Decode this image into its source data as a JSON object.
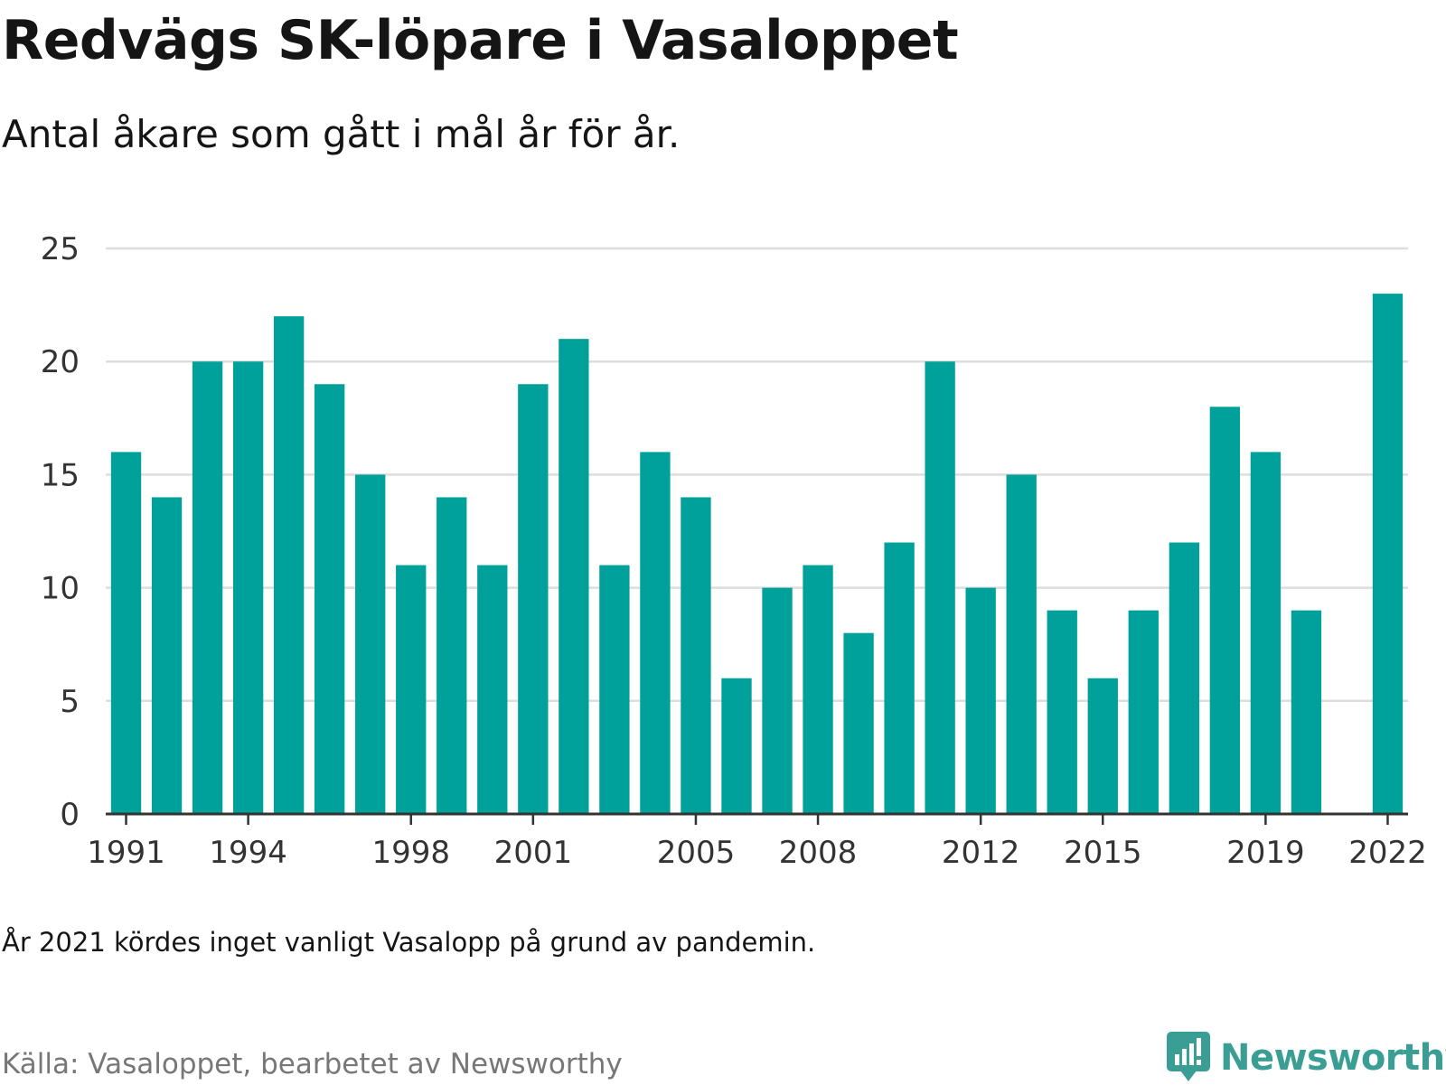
{
  "title": "Redvägs SK-löpare i Vasaloppet",
  "subtitle": "Antal åkare som gått i mål år för år.",
  "note": "År 2021 kördes inget vanligt Vasalopp på grund av pandemin.",
  "source": "Källa: Vasaloppet, bearbetet av Newsworthy",
  "brand": "Newsworthy",
  "colors": {
    "bar": "#00a19a",
    "grid": "#dddddd",
    "axis": "#333333",
    "brand": "#3a9e95"
  },
  "chart_data": {
    "type": "bar",
    "categories": [
      "1991",
      "1992",
      "1993",
      "1994",
      "1995",
      "1996",
      "1997",
      "1998",
      "1999",
      "2000",
      "2001",
      "2002",
      "2003",
      "2004",
      "2005",
      "2006",
      "2007",
      "2008",
      "2009",
      "2010",
      "2011",
      "2012",
      "2013",
      "2014",
      "2015",
      "2016",
      "2017",
      "2018",
      "2019",
      "2020",
      "2021",
      "2022"
    ],
    "values": [
      16,
      14,
      20,
      20,
      22,
      19,
      15,
      11,
      14,
      11,
      19,
      21,
      11,
      16,
      14,
      6,
      10,
      11,
      8,
      12,
      20,
      10,
      15,
      9,
      6,
      9,
      12,
      18,
      16,
      9,
      null,
      23
    ],
    "xticks": [
      "1991",
      "1994",
      "1998",
      "2001",
      "2005",
      "2008",
      "2012",
      "2015",
      "2019",
      "2022"
    ],
    "yticks": [
      0,
      5,
      10,
      15,
      20,
      25
    ],
    "ylim": [
      0,
      25
    ],
    "grid": true,
    "xlabel": "",
    "ylabel": ""
  }
}
